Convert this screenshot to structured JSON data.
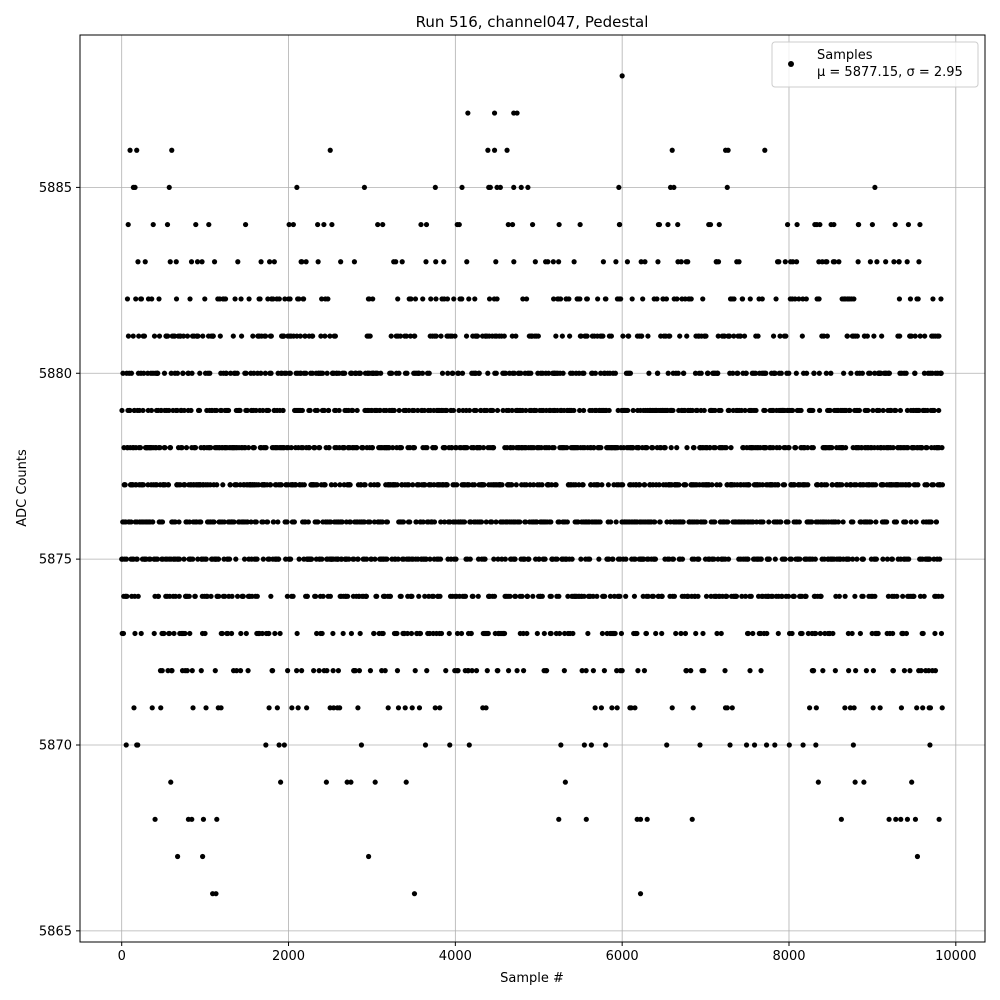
{
  "chart_data": {
    "type": "scatter",
    "title": "Run 516, channel047, Pedestal",
    "xlabel": "Sample #",
    "ylabel": "ADC Counts",
    "xlim": [
      -500,
      10350
    ],
    "ylim": [
      5864.7,
      5889.1
    ],
    "x_ticks": [
      0,
      2000,
      4000,
      6000,
      8000,
      10000
    ],
    "y_ticks": [
      5865,
      5870,
      5875,
      5880,
      5885
    ],
    "grid": true,
    "legend": {
      "placement": "top-right",
      "series_name": "Samples",
      "stats_text": "μ = 5877.15, σ = 2.95"
    },
    "marker_color": "#000000",
    "series": [
      {
        "name": "Samples",
        "x_range": [
          0,
          9840
        ],
        "sample_count": 9841,
        "mean": 5877.15,
        "sigma": 2.95,
        "outliers": [
          [
            6000,
            5888
          ],
          [
            4150,
            5887
          ],
          [
            4470,
            5887
          ],
          [
            4700,
            5887
          ],
          [
            4740,
            5887
          ],
          [
            100,
            5886
          ],
          [
            180,
            5886
          ],
          [
            600,
            5886
          ],
          [
            2500,
            5886
          ],
          [
            4390,
            5886
          ],
          [
            4470,
            5886
          ],
          [
            4620,
            5886
          ],
          [
            6600,
            5886
          ],
          [
            7240,
            5886
          ],
          [
            7270,
            5886
          ],
          [
            7710,
            5886
          ],
          [
            140,
            5885
          ],
          [
            160,
            5885
          ],
          [
            570,
            5885
          ],
          [
            2100,
            5885
          ],
          [
            2910,
            5885
          ],
          [
            3760,
            5885
          ],
          [
            4080,
            5885
          ],
          [
            4400,
            5885
          ],
          [
            4420,
            5885
          ],
          [
            4500,
            5885
          ],
          [
            4540,
            5885
          ],
          [
            4700,
            5885
          ],
          [
            4790,
            5885
          ],
          [
            4870,
            5885
          ],
          [
            5960,
            5885
          ],
          [
            6580,
            5885
          ],
          [
            6620,
            5885
          ],
          [
            7260,
            5885
          ],
          [
            9030,
            5885
          ],
          [
            1090,
            5866
          ],
          [
            1130,
            5866
          ],
          [
            3510,
            5866
          ],
          [
            6220,
            5866
          ],
          [
            670,
            5867
          ],
          [
            970,
            5867
          ],
          [
            2960,
            5867
          ],
          [
            9540,
            5867
          ],
          [
            400,
            5868
          ],
          [
            800,
            5868
          ],
          [
            840,
            5868
          ],
          [
            980,
            5868
          ],
          [
            1140,
            5868
          ],
          [
            5240,
            5868
          ],
          [
            5570,
            5868
          ],
          [
            6180,
            5868
          ],
          [
            6220,
            5868
          ],
          [
            6300,
            5868
          ],
          [
            6840,
            5868
          ],
          [
            9200,
            5868
          ],
          [
            9280,
            5868
          ],
          [
            9340,
            5868
          ],
          [
            9420,
            5868
          ],
          [
            9800,
            5868
          ]
        ]
      }
    ]
  }
}
